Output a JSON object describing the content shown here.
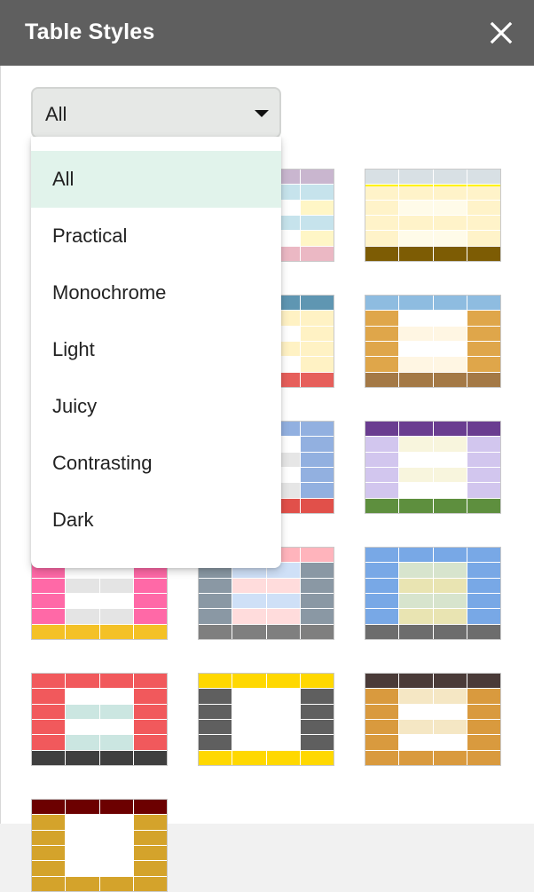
{
  "header": {
    "title": "Table Styles",
    "close_icon": "close-icon"
  },
  "filter": {
    "selected": "All",
    "options": [
      "All",
      "Practical",
      "Monochrome",
      "Light",
      "Juicy",
      "Contrasting",
      "Dark"
    ]
  },
  "styles": [
    {
      "h": "#c9b6cf",
      "b1": "#c6e3ec",
      "b2": "#ffffff",
      "s": "#c6e3ec",
      "alt": "#fff6c6",
      "f": "#ebb8c4"
    },
    {
      "h": "#d8e0e4",
      "b1": "#fff3c9",
      "b2": "#fffbe9",
      "s": "#fff3c9",
      "f": "#7d5c04",
      "accent": "#fff200"
    },
    {
      "h": "#f57a5c",
      "b1": "#dcdde9",
      "b2": "#ffffff",
      "s": "#dcdde9",
      "alt": "#fbe9d9",
      "f": "#efae95"
    },
    {
      "h": "#5f96b2",
      "b1": "#fff2c4",
      "b2": "#ffffff",
      "s": "#fff2c4",
      "f": "#e65f5b"
    },
    {
      "h": "#8ebce0",
      "b1": "#ffffff",
      "b2": "#fff6e3",
      "s": "#dfa64a",
      "f": "#a47946"
    },
    {
      "h": "#5b4c4c",
      "b1": "#f4f0e0",
      "b2": "#dfe6e8",
      "s": "#79a2ab",
      "f": "#f85f4c"
    },
    {
      "h": "#92b0e0",
      "b1": "#ffffff",
      "b2": "#e6e6e6",
      "s": "#92b0e0",
      "f": "#e1504a"
    },
    {
      "h": "#6a3d90",
      "b1": "#f8f5dd",
      "b2": "#ffffff",
      "s": "#d2c6ee",
      "f": "#5e8f3e"
    },
    {
      "h": "#e4346a",
      "b1": "#ffffff",
      "b2": "#e4e4e4",
      "s": "#ff69a7",
      "f": "#f4c126"
    },
    {
      "h": "#ffb4bc",
      "b1": "#cfe0f7",
      "b2": "#ffdcdc",
      "s": "#8a98a4",
      "f": "#7f7f7f"
    },
    {
      "h": "#78a8e6",
      "b1": "#d7e4cd",
      "b2": "#e9e4b2",
      "s": "#78a8e6",
      "f": "#6d6d6d"
    },
    {
      "h": "#f1595c",
      "b1": "#ffffff",
      "b2": "#cbe6e1",
      "s": "#f1595c",
      "f": "#3f3f3f"
    },
    {
      "h": "#ffd800",
      "b1": "#ffffff",
      "b2": "#ffffff",
      "s": "#5f5f5f",
      "f": "#ffd800"
    },
    {
      "h": "#4a3b38",
      "b1": "#f5e7c4",
      "b2": "#ffffff",
      "s": "#d99a3e",
      "f": "#d99a3e"
    },
    {
      "h": "#6c0000",
      "b1": "#ffffff",
      "b2": "#ffffff",
      "s": "#d4a32b",
      "f": "#d4a32b"
    }
  ]
}
